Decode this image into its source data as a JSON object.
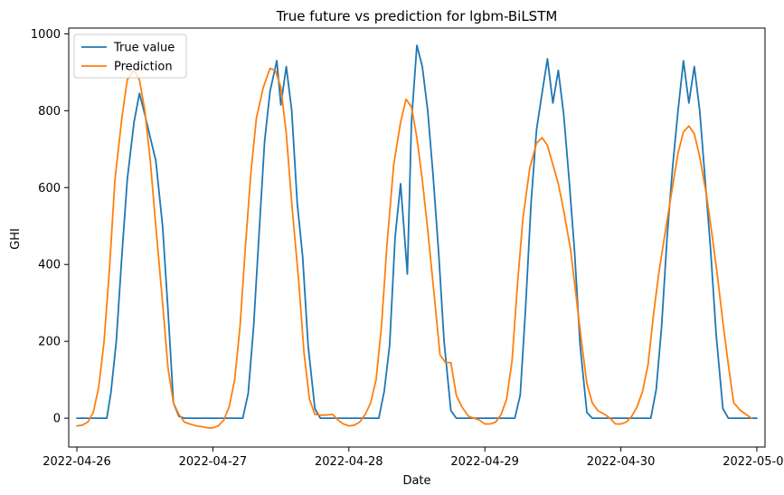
{
  "chart_data": {
    "type": "line",
    "title": "True future vs prediction for lgbm-BiLSTM",
    "xlabel": "Date",
    "ylabel": "GHI",
    "xlim": [
      -0.06,
      5.06
    ],
    "ylim": [
      -75,
      1015
    ],
    "x_ticks": [
      {
        "value": 0,
        "label": "2022-04-26"
      },
      {
        "value": 1,
        "label": "2022-04-27"
      },
      {
        "value": 2,
        "label": "2022-04-28"
      },
      {
        "value": 3,
        "label": "2022-04-29"
      },
      {
        "value": 4,
        "label": "2022-04-30"
      },
      {
        "value": 5,
        "label": "2022-05-01"
      }
    ],
    "y_ticks": [
      0,
      200,
      400,
      600,
      800,
      1000
    ],
    "grid": false,
    "legend_position": "upper left",
    "series": [
      {
        "name": "True value",
        "color": "#1f77b4",
        "points": [
          [
            0.0,
            0
          ],
          [
            0.04,
            0
          ],
          [
            0.08,
            0
          ],
          [
            0.12,
            0
          ],
          [
            0.16,
            0
          ],
          [
            0.2,
            0
          ],
          [
            0.22,
            0
          ],
          [
            0.25,
            65
          ],
          [
            0.29,
            200
          ],
          [
            0.33,
            420
          ],
          [
            0.37,
            620
          ],
          [
            0.42,
            770
          ],
          [
            0.46,
            845
          ],
          [
            0.5,
            790
          ],
          [
            0.54,
            730
          ],
          [
            0.58,
            670
          ],
          [
            0.63,
            500
          ],
          [
            0.67,
            280
          ],
          [
            0.71,
            40
          ],
          [
            0.75,
            5
          ],
          [
            0.79,
            0
          ],
          [
            0.83,
            0
          ],
          [
            0.88,
            0
          ],
          [
            0.92,
            0
          ],
          [
            0.96,
            0
          ],
          [
            1.0,
            0
          ],
          [
            1.04,
            0
          ],
          [
            1.08,
            0
          ],
          [
            1.12,
            0
          ],
          [
            1.16,
            0
          ],
          [
            1.2,
            0
          ],
          [
            1.22,
            0
          ],
          [
            1.26,
            65
          ],
          [
            1.3,
            240
          ],
          [
            1.34,
            480
          ],
          [
            1.38,
            720
          ],
          [
            1.42,
            850
          ],
          [
            1.47,
            930
          ],
          [
            1.5,
            815
          ],
          [
            1.54,
            915
          ],
          [
            1.58,
            800
          ],
          [
            1.62,
            560
          ],
          [
            1.66,
            420
          ],
          [
            1.7,
            190
          ],
          [
            1.75,
            25
          ],
          [
            1.79,
            0
          ],
          [
            1.83,
            0
          ],
          [
            1.88,
            0
          ],
          [
            1.92,
            0
          ],
          [
            1.96,
            0
          ],
          [
            2.0,
            0
          ],
          [
            2.04,
            0
          ],
          [
            2.08,
            0
          ],
          [
            2.12,
            0
          ],
          [
            2.16,
            0
          ],
          [
            2.2,
            0
          ],
          [
            2.22,
            0
          ],
          [
            2.26,
            70
          ],
          [
            2.3,
            190
          ],
          [
            2.34,
            470
          ],
          [
            2.38,
            610
          ],
          [
            2.43,
            375
          ],
          [
            2.46,
            770
          ],
          [
            2.5,
            970
          ],
          [
            2.54,
            915
          ],
          [
            2.58,
            800
          ],
          [
            2.62,
            630
          ],
          [
            2.66,
            430
          ],
          [
            2.7,
            200
          ],
          [
            2.75,
            20
          ],
          [
            2.79,
            0
          ],
          [
            2.83,
            0
          ],
          [
            2.88,
            0
          ],
          [
            2.92,
            0
          ],
          [
            2.96,
            0
          ],
          [
            3.0,
            0
          ],
          [
            3.04,
            0
          ],
          [
            3.08,
            0
          ],
          [
            3.12,
            0
          ],
          [
            3.16,
            0
          ],
          [
            3.2,
            0
          ],
          [
            3.22,
            0
          ],
          [
            3.26,
            60
          ],
          [
            3.3,
            290
          ],
          [
            3.34,
            560
          ],
          [
            3.38,
            750
          ],
          [
            3.42,
            845
          ],
          [
            3.46,
            935
          ],
          [
            3.5,
            820
          ],
          [
            3.54,
            905
          ],
          [
            3.58,
            790
          ],
          [
            3.62,
            620
          ],
          [
            3.66,
            430
          ],
          [
            3.7,
            190
          ],
          [
            3.75,
            15
          ],
          [
            3.79,
            0
          ],
          [
            3.83,
            0
          ],
          [
            3.88,
            0
          ],
          [
            3.92,
            0
          ],
          [
            3.96,
            0
          ],
          [
            4.0,
            0
          ],
          [
            4.04,
            0
          ],
          [
            4.08,
            0
          ],
          [
            4.12,
            0
          ],
          [
            4.16,
            0
          ],
          [
            4.2,
            0
          ],
          [
            4.22,
            0
          ],
          [
            4.26,
            75
          ],
          [
            4.3,
            240
          ],
          [
            4.34,
            470
          ],
          [
            4.38,
            650
          ],
          [
            4.42,
            800
          ],
          [
            4.46,
            930
          ],
          [
            4.5,
            820
          ],
          [
            4.54,
            915
          ],
          [
            4.58,
            800
          ],
          [
            4.62,
            620
          ],
          [
            4.66,
            440
          ],
          [
            4.7,
            220
          ],
          [
            4.75,
            25
          ],
          [
            4.79,
            0
          ],
          [
            4.83,
            0
          ],
          [
            4.88,
            0
          ],
          [
            4.92,
            0
          ],
          [
            4.96,
            0
          ],
          [
            5.0,
            0
          ]
        ]
      },
      {
        "name": "Prediction",
        "color": "#ff7f0e",
        "points": [
          [
            0.0,
            -20
          ],
          [
            0.04,
            -18
          ],
          [
            0.08,
            -10
          ],
          [
            0.12,
            15
          ],
          [
            0.16,
            80
          ],
          [
            0.2,
            200
          ],
          [
            0.24,
            390
          ],
          [
            0.28,
            620
          ],
          [
            0.33,
            780
          ],
          [
            0.37,
            880
          ],
          [
            0.42,
            905
          ],
          [
            0.46,
            880
          ],
          [
            0.5,
            800
          ],
          [
            0.54,
            670
          ],
          [
            0.58,
            500
          ],
          [
            0.63,
            300
          ],
          [
            0.67,
            130
          ],
          [
            0.71,
            40
          ],
          [
            0.75,
            10
          ],
          [
            0.79,
            -10
          ],
          [
            0.83,
            -15
          ],
          [
            0.88,
            -20
          ],
          [
            0.92,
            -22
          ],
          [
            0.96,
            -25
          ],
          [
            1.0,
            -25
          ],
          [
            1.04,
            -20
          ],
          [
            1.08,
            -5
          ],
          [
            1.12,
            30
          ],
          [
            1.16,
            100
          ],
          [
            1.2,
            240
          ],
          [
            1.24,
            450
          ],
          [
            1.28,
            640
          ],
          [
            1.32,
            780
          ],
          [
            1.37,
            860
          ],
          [
            1.42,
            910
          ],
          [
            1.46,
            905
          ],
          [
            1.5,
            860
          ],
          [
            1.54,
            740
          ],
          [
            1.58,
            560
          ],
          [
            1.63,
            360
          ],
          [
            1.67,
            170
          ],
          [
            1.71,
            50
          ],
          [
            1.75,
            10
          ],
          [
            1.79,
            8
          ],
          [
            1.83,
            8
          ],
          [
            1.88,
            10
          ],
          [
            1.92,
            -5
          ],
          [
            1.96,
            -15
          ],
          [
            2.0,
            -20
          ],
          [
            2.04,
            -18
          ],
          [
            2.08,
            -10
          ],
          [
            2.12,
            10
          ],
          [
            2.16,
            40
          ],
          [
            2.2,
            100
          ],
          [
            2.24,
            240
          ],
          [
            2.28,
            450
          ],
          [
            2.33,
            660
          ],
          [
            2.38,
            770
          ],
          [
            2.42,
            830
          ],
          [
            2.46,
            810
          ],
          [
            2.5,
            730
          ],
          [
            2.54,
            620
          ],
          [
            2.58,
            490
          ],
          [
            2.63,
            310
          ],
          [
            2.67,
            165
          ],
          [
            2.71,
            145
          ],
          [
            2.75,
            145
          ],
          [
            2.79,
            60
          ],
          [
            2.83,
            30
          ],
          [
            2.88,
            5
          ],
          [
            2.92,
            0
          ],
          [
            2.96,
            -5
          ],
          [
            3.0,
            -15
          ],
          [
            3.04,
            -15
          ],
          [
            3.08,
            -10
          ],
          [
            3.12,
            10
          ],
          [
            3.16,
            50
          ],
          [
            3.2,
            150
          ],
          [
            3.24,
            350
          ],
          [
            3.28,
            520
          ],
          [
            3.33,
            650
          ],
          [
            3.38,
            715
          ],
          [
            3.42,
            730
          ],
          [
            3.46,
            710
          ],
          [
            3.5,
            660
          ],
          [
            3.54,
            610
          ],
          [
            3.58,
            540
          ],
          [
            3.63,
            440
          ],
          [
            3.67,
            320
          ],
          [
            3.71,
            200
          ],
          [
            3.75,
            90
          ],
          [
            3.79,
            40
          ],
          [
            3.83,
            20
          ],
          [
            3.88,
            10
          ],
          [
            3.92,
            0
          ],
          [
            3.96,
            -15
          ],
          [
            4.0,
            -15
          ],
          [
            4.04,
            -10
          ],
          [
            4.08,
            5
          ],
          [
            4.12,
            30
          ],
          [
            4.16,
            70
          ],
          [
            4.2,
            140
          ],
          [
            4.24,
            270
          ],
          [
            4.28,
            380
          ],
          [
            4.32,
            470
          ],
          [
            4.37,
            580
          ],
          [
            4.42,
            690
          ],
          [
            4.46,
            745
          ],
          [
            4.5,
            760
          ],
          [
            4.54,
            740
          ],
          [
            4.58,
            680
          ],
          [
            4.63,
            580
          ],
          [
            4.67,
            480
          ],
          [
            4.71,
            370
          ],
          [
            4.75,
            250
          ],
          [
            4.79,
            140
          ],
          [
            4.83,
            40
          ],
          [
            4.88,
            20
          ],
          [
            4.92,
            10
          ],
          [
            4.96,
            0
          ]
        ]
      }
    ]
  }
}
